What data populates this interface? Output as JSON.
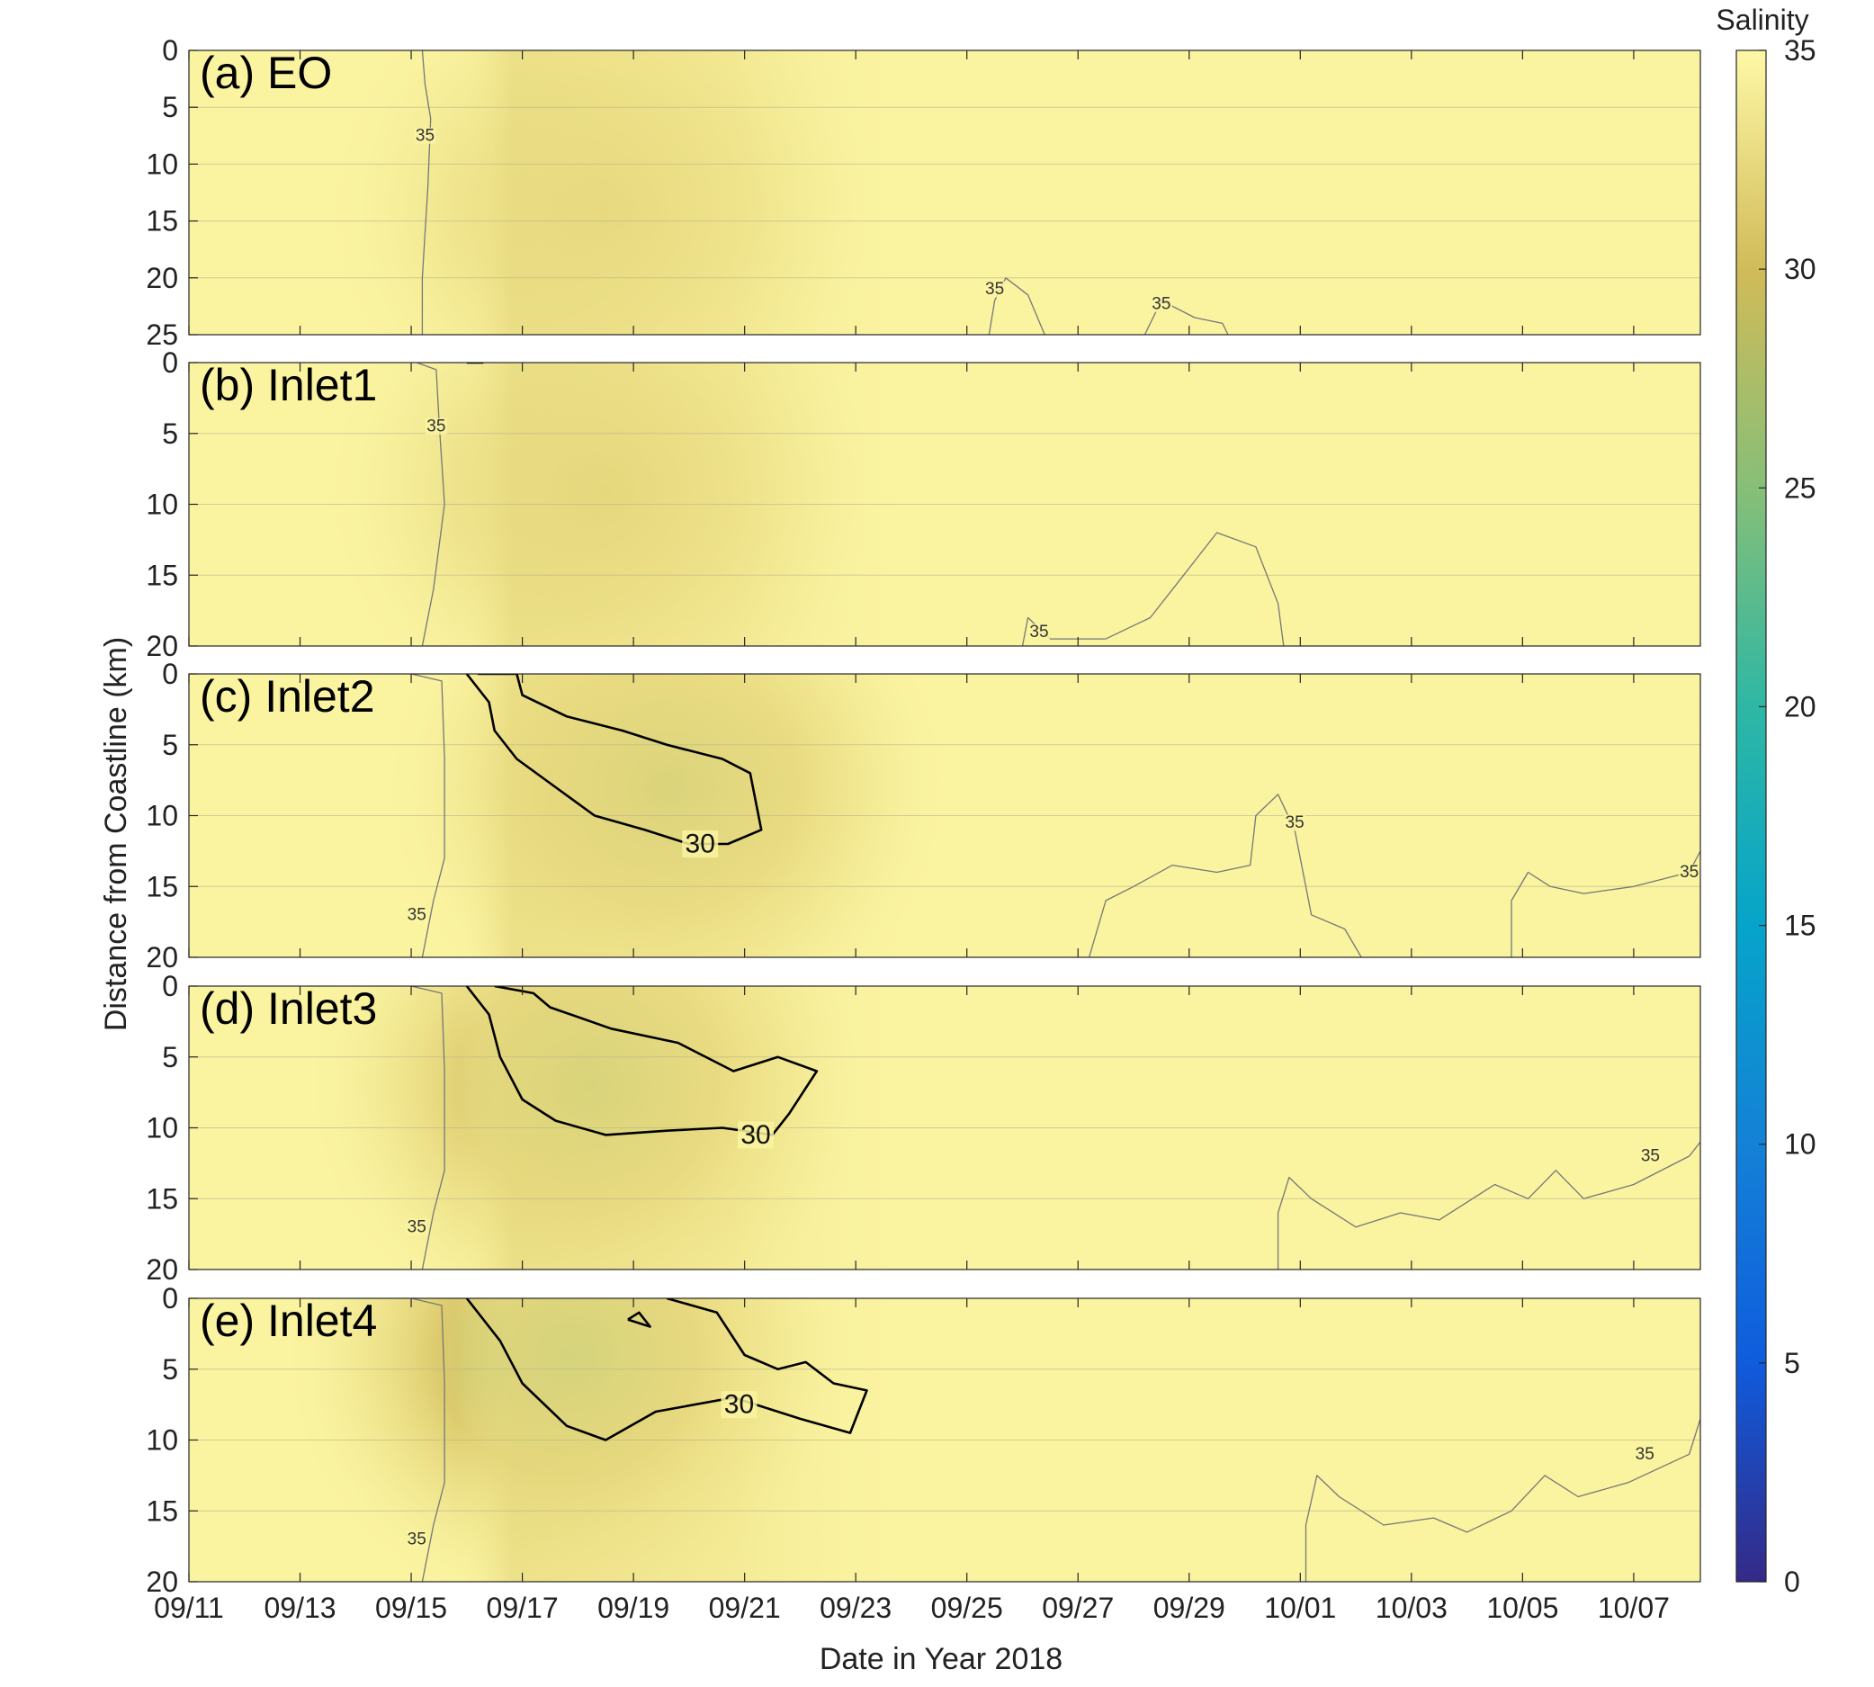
{
  "chart_data": {
    "type": "heatmap",
    "figure_title": "",
    "xlabel": "Date in Year 2018",
    "ylabel": "Distance from Coastline (km)",
    "x_tick_labels": [
      "09/11",
      "09/13",
      "09/15",
      "09/17",
      "09/19",
      "09/21",
      "09/23",
      "09/25",
      "09/27",
      "09/29",
      "10/01",
      "10/03",
      "10/05",
      "10/07"
    ],
    "x_range_days": [
      0,
      27.2
    ],
    "colorbar": {
      "title": "Salinity",
      "range": [
        0,
        35
      ],
      "ticks": [
        0,
        5,
        10,
        15,
        20,
        25,
        30,
        35
      ],
      "colormap": "parula",
      "stops": [
        "#352a87",
        "#0f5cdd",
        "#1481d6",
        "#06a4ca",
        "#2eb7a4",
        "#87bf77",
        "#d1bb59",
        "#fef8a6"
      ]
    },
    "grid": true,
    "panels": [
      {
        "label": "(a) EO",
        "y_range": [
          0,
          25
        ],
        "y_ticks": [
          0,
          5,
          10,
          15,
          20,
          25
        ],
        "fresh_core": {
          "center_day": 7.5,
          "center_km": 14,
          "min_salinity": 31.5
        },
        "contours": [
          {
            "level": 35,
            "points": [
              [
                4.2,
                0
              ],
              [
                4.25,
                3
              ],
              [
                4.35,
                6
              ],
              [
                4.3,
                12
              ],
              [
                4.2,
                20
              ],
              [
                4.2,
                25
              ]
            ],
            "label_at": [
              4.25,
              7.5
            ]
          },
          {
            "level": 35,
            "points": [
              [
                14.4,
                25
              ],
              [
                14.5,
                22
              ],
              [
                14.7,
                20
              ],
              [
                15.1,
                21.5
              ],
              [
                15.4,
                25
              ]
            ],
            "label_at": [
              14.5,
              21
            ]
          },
          {
            "level": 35,
            "points": [
              [
                17.2,
                25
              ],
              [
                17.5,
                22
              ],
              [
                18.1,
                23.5
              ],
              [
                18.6,
                24
              ],
              [
                18.7,
                25
              ]
            ],
            "label_at": [
              17.5,
              22.3
            ]
          }
        ]
      },
      {
        "label": "(b) Inlet1",
        "y_range": [
          0,
          20
        ],
        "y_ticks": [
          0,
          5,
          10,
          15,
          20
        ],
        "fresh_core": {
          "center_day": 7.5,
          "center_km": 9,
          "min_salinity": 31.0
        },
        "contours": [
          {
            "level": 35,
            "points": [
              [
                4.1,
                0
              ],
              [
                4.45,
                0.5
              ],
              [
                4.5,
                4
              ],
              [
                4.6,
                10
              ],
              [
                4.4,
                16
              ],
              [
                4.2,
                20
              ]
            ],
            "label_at": [
              4.45,
              4.5
            ]
          },
          {
            "level": 35,
            "points": [
              [
                15.0,
                20
              ],
              [
                15.1,
                18
              ],
              [
                15.5,
                19.5
              ],
              [
                16.5,
                19.5
              ],
              [
                17.3,
                18
              ],
              [
                17.9,
                15
              ],
              [
                18.5,
                12
              ],
              [
                19.2,
                13
              ],
              [
                19.6,
                17
              ],
              [
                19.7,
                20
              ]
            ],
            "label_at": [
              15.3,
              19
            ]
          },
          {
            "level": 30,
            "points": [
              [
                5.0,
                0
              ],
              [
                5.3,
                0
              ]
            ],
            "label_at": null
          }
        ]
      },
      {
        "label": "(c) Inlet2",
        "y_range": [
          0,
          20
        ],
        "y_ticks": [
          0,
          5,
          10,
          15,
          20
        ],
        "fresh_core": {
          "center_day": 8.6,
          "center_km": 8,
          "min_salinity": 28.5
        },
        "contours": [
          {
            "level": 35,
            "points": [
              [
                4.0,
                0
              ],
              [
                4.55,
                0.5
              ],
              [
                4.6,
                6
              ],
              [
                4.6,
                13
              ],
              [
                4.4,
                16
              ],
              [
                4.2,
                20
              ]
            ],
            "label_at": [
              4.1,
              17
            ]
          },
          {
            "level": 35,
            "points": [
              [
                16.2,
                20
              ],
              [
                16.5,
                16
              ],
              [
                17.0,
                15
              ],
              [
                17.7,
                13.5
              ],
              [
                18.5,
                14
              ],
              [
                19.1,
                13.5
              ],
              [
                19.2,
                10
              ],
              [
                19.6,
                8.5
              ],
              [
                19.9,
                11
              ],
              [
                20.2,
                17
              ],
              [
                20.8,
                18
              ],
              [
                21.1,
                20
              ]
            ],
            "label_at": [
              19.9,
              10.5
            ]
          },
          {
            "level": 35,
            "points": [
              [
                23.8,
                20
              ],
              [
                23.8,
                16
              ],
              [
                24.1,
                14
              ],
              [
                24.5,
                15
              ],
              [
                25.1,
                15.5
              ],
              [
                26,
                15
              ],
              [
                27,
                14
              ],
              [
                27.2,
                12.5
              ]
            ],
            "label_at": [
              27,
              14
            ]
          },
          {
            "level": 30,
            "points": [
              [
                5.0,
                0
              ],
              [
                5.4,
                2
              ],
              [
                5.5,
                4
              ],
              [
                5.9,
                6
              ],
              [
                6.6,
                8
              ],
              [
                7.3,
                10
              ],
              [
                8.2,
                11
              ],
              [
                9.0,
                12
              ],
              [
                9.7,
                12
              ],
              [
                10.3,
                11
              ],
              [
                10.1,
                7
              ],
              [
                9.6,
                6
              ],
              [
                8.6,
                5
              ],
              [
                7.8,
                4
              ],
              [
                6.8,
                3
              ],
              [
                6.0,
                1.5
              ],
              [
                5.9,
                0
              ],
              [
                5.2,
                0
              ]
            ],
            "label_at": [
              9.2,
              12
            ]
          }
        ]
      },
      {
        "label": "(d) Inlet3",
        "y_range": [
          0,
          20
        ],
        "y_ticks": [
          0,
          5,
          10,
          15,
          20
        ],
        "fresh_core": {
          "center_day": 7.2,
          "center_km": 7,
          "min_salinity": 28.0
        },
        "contours": [
          {
            "level": 35,
            "points": [
              [
                4.0,
                0
              ],
              [
                4.55,
                0.5
              ],
              [
                4.6,
                6
              ],
              [
                4.6,
                13
              ],
              [
                4.4,
                16
              ],
              [
                4.2,
                20
              ]
            ],
            "label_at": [
              4.1,
              17
            ]
          },
          {
            "level": 35,
            "points": [
              [
                19.6,
                20
              ],
              [
                19.6,
                16
              ],
              [
                19.8,
                13.5
              ],
              [
                20.2,
                15
              ],
              [
                21.0,
                17
              ],
              [
                21.8,
                16
              ],
              [
                22.5,
                16.5
              ],
              [
                23.5,
                14
              ],
              [
                24.1,
                15
              ],
              [
                24.6,
                13
              ],
              [
                25.1,
                15
              ],
              [
                26,
                14
              ],
              [
                27.0,
                12
              ],
              [
                27.2,
                11
              ]
            ],
            "label_at": [
              26.3,
              12
            ]
          },
          {
            "level": 30,
            "points": [
              [
                5.0,
                0
              ],
              [
                5.4,
                2
              ],
              [
                5.6,
                5
              ],
              [
                6.0,
                8
              ],
              [
                6.6,
                9.5
              ],
              [
                7.5,
                10.5
              ],
              [
                8.6,
                10.2
              ],
              [
                9.6,
                10
              ],
              [
                10.5,
                10.5
              ],
              [
                10.8,
                9
              ],
              [
                11.3,
                6
              ],
              [
                10.6,
                5
              ],
              [
                9.8,
                6
              ],
              [
                8.8,
                4
              ],
              [
                7.6,
                3
              ],
              [
                6.5,
                1.5
              ],
              [
                6.2,
                0.5
              ],
              [
                5.5,
                0
              ]
            ],
            "label_at": [
              10.2,
              10.5
            ]
          }
        ]
      },
      {
        "label": "(e) Inlet4",
        "y_range": [
          0,
          20
        ],
        "y_ticks": [
          0,
          5,
          10,
          15,
          20
        ],
        "fresh_core": {
          "center_day": 6.8,
          "center_km": 4,
          "min_salinity": 27.0
        },
        "contours": [
          {
            "level": 35,
            "points": [
              [
                4.0,
                0
              ],
              [
                4.55,
                0.5
              ],
              [
                4.6,
                6
              ],
              [
                4.6,
                13
              ],
              [
                4.4,
                16
              ],
              [
                4.2,
                20
              ]
            ],
            "label_at": [
              4.1,
              17
            ]
          },
          {
            "level": 35,
            "points": [
              [
                20.1,
                20
              ],
              [
                20.1,
                16
              ],
              [
                20.3,
                12.5
              ],
              [
                20.7,
                14
              ],
              [
                21.5,
                16
              ],
              [
                22.4,
                15.5
              ],
              [
                23.0,
                16.5
              ],
              [
                23.8,
                15
              ],
              [
                24.4,
                12.5
              ],
              [
                25,
                14
              ],
              [
                25.9,
                13
              ],
              [
                27.0,
                11
              ],
              [
                27.2,
                8.5
              ]
            ],
            "label_at": [
              26.2,
              11
            ]
          },
          {
            "level": 30,
            "points": [
              [
                5.0,
                0
              ],
              [
                5.6,
                3
              ],
              [
                6.0,
                6
              ],
              [
                6.8,
                9
              ],
              [
                7.5,
                10
              ],
              [
                8.4,
                8
              ],
              [
                9.8,
                7
              ],
              [
                11.0,
                8.5
              ],
              [
                11.9,
                9.5
              ],
              [
                12.2,
                6.5
              ],
              [
                11.6,
                6
              ],
              [
                11.1,
                4.5
              ],
              [
                10.6,
                5
              ],
              [
                10.0,
                4
              ],
              [
                9.5,
                1
              ],
              [
                8.6,
                0
              ]
            ],
            "label_at": [
              9.9,
              7.5
            ]
          },
          {
            "level": 30,
            "points": [
              [
                7.9,
                1.5
              ],
              [
                8.1,
                1
              ],
              [
                8.3,
                2
              ],
              [
                7.9,
                1.5
              ]
            ],
            "label_at": null
          }
        ]
      }
    ]
  }
}
